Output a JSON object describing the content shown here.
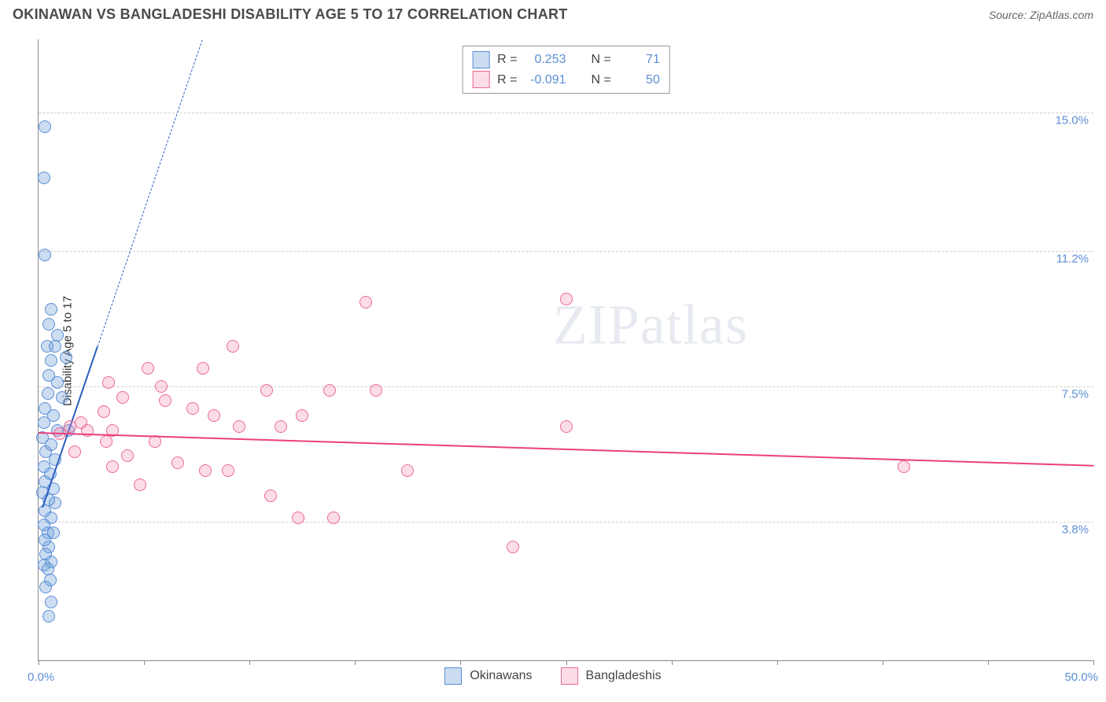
{
  "header": {
    "title": "OKINAWAN VS BANGLADESHI DISABILITY AGE 5 TO 17 CORRELATION CHART",
    "source_prefix": "Source: ",
    "source_name": "ZipAtlas.com"
  },
  "watermark": {
    "part1": "ZIP",
    "part2": "atlas"
  },
  "axes": {
    "y_label": "Disability Age 5 to 17",
    "x_min": 0.0,
    "x_max": 50.0,
    "y_min": 0.0,
    "y_max": 17.0,
    "y_ticks": [
      {
        "v": 3.8,
        "label": "3.8%"
      },
      {
        "v": 7.5,
        "label": "7.5%"
      },
      {
        "v": 11.2,
        "label": "11.2%"
      },
      {
        "v": 15.0,
        "label": "15.0%"
      }
    ],
    "x_ticks_major": [
      0,
      5,
      10,
      15,
      20,
      25,
      30,
      35,
      40,
      45,
      50
    ],
    "x_min_label": "0.0%",
    "x_max_label": "50.0%",
    "grid_color": "#d0d0d0",
    "tick_label_color": "#5b8fd6"
  },
  "series": [
    {
      "key": "okinawans",
      "label": "Okinawans",
      "point_fill": "rgba(109,158,217,0.35)",
      "point_stroke": "#5b8fd6",
      "trend_color": "#2d5fbf",
      "trend_dash_color": "#2d5fbf",
      "R": "0.253",
      "N": "71",
      "point_radius": 8,
      "trend": {
        "x1": 0.2,
        "y1": 4.2,
        "x2": 2.8,
        "y2": 8.6,
        "dash_extend_to_y": 17.0
      },
      "points": [
        {
          "x": 0.3,
          "y": 14.6
        },
        {
          "x": 0.25,
          "y": 13.2
        },
        {
          "x": 0.3,
          "y": 11.1
        },
        {
          "x": 0.6,
          "y": 9.6
        },
        {
          "x": 0.5,
          "y": 9.2
        },
        {
          "x": 0.9,
          "y": 8.9
        },
        {
          "x": 0.4,
          "y": 8.6
        },
        {
          "x": 0.8,
          "y": 8.6
        },
        {
          "x": 0.6,
          "y": 8.2
        },
        {
          "x": 1.3,
          "y": 8.3
        },
        {
          "x": 0.5,
          "y": 7.8
        },
        {
          "x": 0.9,
          "y": 7.6
        },
        {
          "x": 0.45,
          "y": 7.3
        },
        {
          "x": 1.1,
          "y": 7.2
        },
        {
          "x": 0.3,
          "y": 6.9
        },
        {
          "x": 0.7,
          "y": 6.7
        },
        {
          "x": 0.25,
          "y": 6.5
        },
        {
          "x": 0.9,
          "y": 6.3
        },
        {
          "x": 1.4,
          "y": 6.3
        },
        {
          "x": 0.2,
          "y": 6.1
        },
        {
          "x": 0.6,
          "y": 5.9
        },
        {
          "x": 0.35,
          "y": 5.7
        },
        {
          "x": 0.8,
          "y": 5.5
        },
        {
          "x": 0.25,
          "y": 5.3
        },
        {
          "x": 0.55,
          "y": 5.1
        },
        {
          "x": 0.3,
          "y": 4.9
        },
        {
          "x": 0.7,
          "y": 4.7
        },
        {
          "x": 0.2,
          "y": 4.6
        },
        {
          "x": 0.5,
          "y": 4.4
        },
        {
          "x": 0.8,
          "y": 4.3
        },
        {
          "x": 0.3,
          "y": 4.1
        },
        {
          "x": 0.6,
          "y": 3.9
        },
        {
          "x": 0.25,
          "y": 3.7
        },
        {
          "x": 0.45,
          "y": 3.5
        },
        {
          "x": 0.7,
          "y": 3.5
        },
        {
          "x": 0.3,
          "y": 3.3
        },
        {
          "x": 0.5,
          "y": 3.1
        },
        {
          "x": 0.35,
          "y": 2.9
        },
        {
          "x": 0.6,
          "y": 2.7
        },
        {
          "x": 0.25,
          "y": 2.6
        },
        {
          "x": 0.45,
          "y": 2.5
        },
        {
          "x": 0.55,
          "y": 2.2
        },
        {
          "x": 0.35,
          "y": 2.0
        },
        {
          "x": 0.6,
          "y": 1.6
        },
        {
          "x": 0.5,
          "y": 1.2
        }
      ]
    },
    {
      "key": "bangladeshis",
      "label": "Bangladeshis",
      "point_fill": "rgba(244,143,177,0.30)",
      "point_stroke": "#ec6a98",
      "trend_color": "#ec407a",
      "R": "-0.091",
      "N": "50",
      "point_radius": 8,
      "trend": {
        "x1": 0.0,
        "y1": 6.25,
        "x2": 50.0,
        "y2": 5.35
      },
      "points": [
        {
          "x": 25.0,
          "y": 9.9
        },
        {
          "x": 15.5,
          "y": 9.8
        },
        {
          "x": 9.2,
          "y": 8.6
        },
        {
          "x": 5.2,
          "y": 8.0
        },
        {
          "x": 7.8,
          "y": 8.0
        },
        {
          "x": 3.3,
          "y": 7.6
        },
        {
          "x": 5.8,
          "y": 7.5
        },
        {
          "x": 10.8,
          "y": 7.4
        },
        {
          "x": 13.8,
          "y": 7.4
        },
        {
          "x": 16.0,
          "y": 7.4
        },
        {
          "x": 4.0,
          "y": 7.2
        },
        {
          "x": 6.0,
          "y": 7.1
        },
        {
          "x": 3.1,
          "y": 6.8
        },
        {
          "x": 7.3,
          "y": 6.9
        },
        {
          "x": 8.3,
          "y": 6.7
        },
        {
          "x": 12.5,
          "y": 6.7
        },
        {
          "x": 2.0,
          "y": 6.5
        },
        {
          "x": 1.5,
          "y": 6.4
        },
        {
          "x": 3.5,
          "y": 6.3
        },
        {
          "x": 9.5,
          "y": 6.4
        },
        {
          "x": 11.5,
          "y": 6.4
        },
        {
          "x": 25.0,
          "y": 6.4
        },
        {
          "x": 2.3,
          "y": 6.3
        },
        {
          "x": 1.0,
          "y": 6.2
        },
        {
          "x": 3.2,
          "y": 6.0
        },
        {
          "x": 5.5,
          "y": 6.0
        },
        {
          "x": 1.7,
          "y": 5.7
        },
        {
          "x": 4.2,
          "y": 5.6
        },
        {
          "x": 6.6,
          "y": 5.4
        },
        {
          "x": 3.5,
          "y": 5.3
        },
        {
          "x": 7.9,
          "y": 5.2
        },
        {
          "x": 9.0,
          "y": 5.2
        },
        {
          "x": 17.5,
          "y": 5.2
        },
        {
          "x": 41.0,
          "y": 5.3
        },
        {
          "x": 4.8,
          "y": 4.8
        },
        {
          "x": 11.0,
          "y": 4.5
        },
        {
          "x": 12.3,
          "y": 3.9
        },
        {
          "x": 14.0,
          "y": 3.9
        },
        {
          "x": 22.5,
          "y": 3.1
        }
      ]
    }
  ],
  "stats_box": {
    "labels": {
      "R": "R =",
      "N": "N ="
    }
  },
  "legend": {
    "items": [
      "okinawans",
      "bangladeshis"
    ]
  }
}
